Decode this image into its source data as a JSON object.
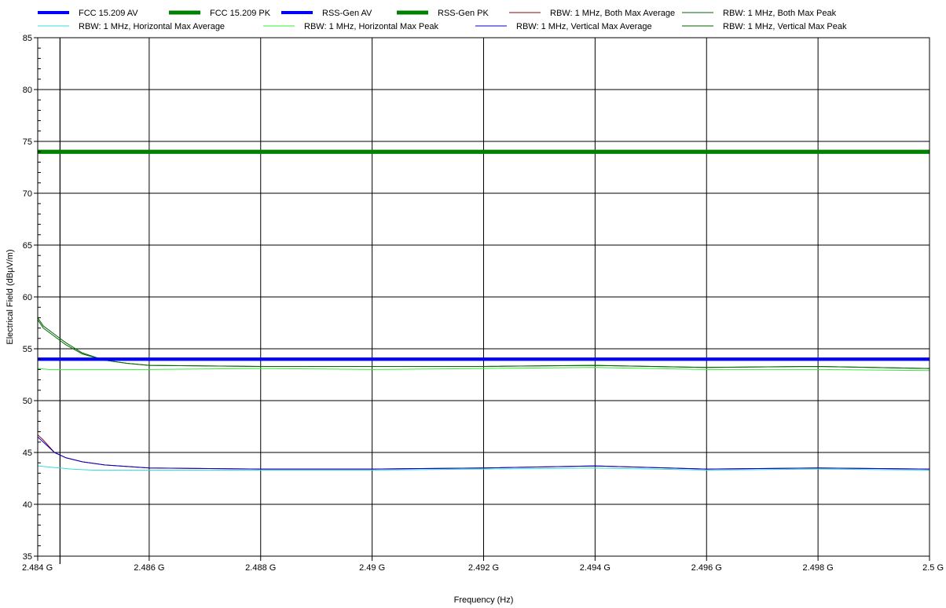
{
  "chart_data": {
    "type": "line",
    "xlabel": "Frequency (Hz)",
    "ylabel": "Electrical Field (dBµV/m)",
    "xlim": [
      2.484,
      2.5
    ],
    "ylim": [
      35,
      85
    ],
    "x_ticks": [
      2.484,
      2.486,
      2.488,
      2.49,
      2.492,
      2.494,
      2.496,
      2.498,
      2.5
    ],
    "x_tick_labels": [
      "2.484 G",
      "2.486 G",
      "2.488 G",
      "2.49 G",
      "2.492 G",
      "2.494 G",
      "2.496 G",
      "2.498 G",
      "2.5 G"
    ],
    "y_ticks": [
      35,
      40,
      45,
      50,
      55,
      60,
      65,
      70,
      75,
      80,
      85
    ],
    "y_tick_labels": [
      "35",
      "40",
      "45",
      "50",
      "55",
      "60",
      "65",
      "70",
      "75",
      "80",
      "85"
    ],
    "grid": true,
    "legend_position": "top",
    "series": [
      {
        "name": "FCC 15.209 AV",
        "color": "#0000ff",
        "width": 4,
        "x": [
          2.484,
          2.5
        ],
        "y": [
          54,
          54
        ]
      },
      {
        "name": "FCC 15.209 PK",
        "color": "#008000",
        "width": 5,
        "x": [
          2.484,
          2.5
        ],
        "y": [
          74,
          74
        ]
      },
      {
        "name": "RSS-Gen AV",
        "color": "#0000ff",
        "width": 4,
        "x": [
          2.484,
          2.5
        ],
        "y": [
          54,
          54
        ]
      },
      {
        "name": "RSS-Gen PK",
        "color": "#008000",
        "width": 5,
        "x": [
          2.484,
          2.5
        ],
        "y": [
          74,
          74
        ]
      },
      {
        "name": "RBW: 1 MHz, Both Max Average",
        "color": "#990000",
        "width": 1,
        "x": [
          2.484,
          2.4841,
          2.4842,
          2.4843,
          2.4845,
          2.4848,
          2.4852,
          2.486,
          2.488,
          2.49,
          2.492,
          2.494,
          2.496,
          2.498,
          2.5
        ],
        "y": [
          46.7,
          46.2,
          45.6,
          45.0,
          44.5,
          44.1,
          43.8,
          43.5,
          43.4,
          43.4,
          43.5,
          43.7,
          43.4,
          43.5,
          43.4
        ]
      },
      {
        "name": "RBW: 1 MHz, Both Max Peak",
        "color": "#006600",
        "width": 1,
        "x": [
          2.484,
          2.4841,
          2.4843,
          2.4845,
          2.4848,
          2.4852,
          2.4856,
          2.486,
          2.488,
          2.49,
          2.492,
          2.494,
          2.496,
          2.498,
          2.5
        ],
        "y": [
          58.0,
          57.2,
          56.4,
          55.6,
          54.6,
          53.9,
          53.6,
          53.4,
          53.3,
          53.3,
          53.3,
          53.4,
          53.2,
          53.3,
          53.1
        ]
      },
      {
        "name": "RBW: 1 MHz, Horizontal Max Average",
        "color": "#33dddd",
        "width": 1,
        "x": [
          2.484,
          2.4842,
          2.4846,
          2.485,
          2.486,
          2.488,
          2.49,
          2.492,
          2.494,
          2.496,
          2.498,
          2.5
        ],
        "y": [
          43.7,
          43.6,
          43.4,
          43.3,
          43.3,
          43.3,
          43.3,
          43.4,
          43.5,
          43.3,
          43.4,
          43.3
        ]
      },
      {
        "name": "RBW: 1 MHz, Horizontal Max Peak",
        "color": "#33ee33",
        "width": 1,
        "x": [
          2.484,
          2.4842,
          2.4846,
          2.485,
          2.486,
          2.488,
          2.49,
          2.492,
          2.494,
          2.496,
          2.498,
          2.5
        ],
        "y": [
          53.1,
          53.0,
          53.0,
          53.0,
          53.0,
          53.1,
          53.0,
          53.1,
          53.2,
          53.0,
          53.0,
          52.9
        ]
      },
      {
        "name": "RBW: 1 MHz, Vertical Max Average",
        "color": "#0000cc",
        "width": 1,
        "x": [
          2.484,
          2.4841,
          2.4842,
          2.4843,
          2.4845,
          2.4848,
          2.4852,
          2.486,
          2.488,
          2.49,
          2.492,
          2.494,
          2.496,
          2.498,
          2.5
        ],
        "y": [
          46.5,
          46.0,
          45.5,
          45.0,
          44.5,
          44.1,
          43.8,
          43.5,
          43.4,
          43.4,
          43.5,
          43.7,
          43.4,
          43.5,
          43.4
        ]
      },
      {
        "name": "RBW: 1 MHz, Vertical Max Peak",
        "color": "#006600",
        "width": 1,
        "x": [
          2.484,
          2.4841,
          2.4843,
          2.4845,
          2.4848,
          2.4852,
          2.4856,
          2.486,
          2.488,
          2.49,
          2.492,
          2.494,
          2.496,
          2.498,
          2.5
        ],
        "y": [
          57.8,
          57.0,
          56.2,
          55.4,
          54.5,
          53.9,
          53.6,
          53.4,
          53.3,
          53.3,
          53.3,
          53.4,
          53.2,
          53.3,
          53.1
        ]
      }
    ],
    "annotations": []
  }
}
